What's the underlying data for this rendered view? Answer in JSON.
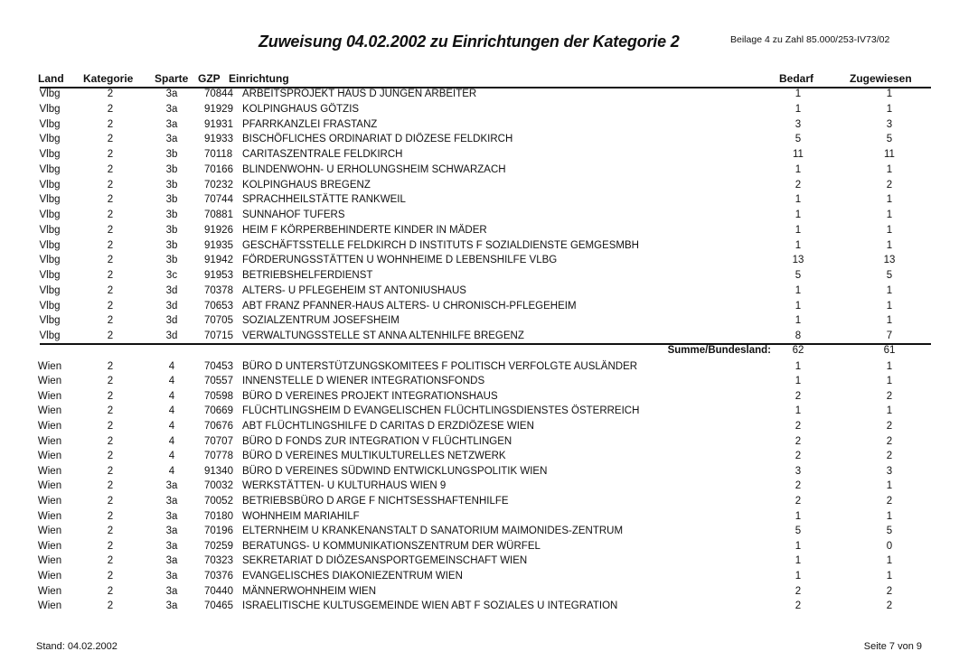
{
  "title": "Zuweisung 04.02.2002 zu Einrichtungen der Kategorie 2",
  "reference": "Beilage 4 zu Zahl 85.000/253-IV73/02",
  "columns": {
    "land": "Land",
    "kategorie": "Kategorie",
    "sparte": "Sparte",
    "gzp": "GZP",
    "einrichtung": "Einrichtung",
    "bedarf": "Bedarf",
    "zugewiesen": "Zugewiesen"
  },
  "group1": [
    [
      "Vlbg",
      "2",
      "3a",
      "70844",
      "ARBEITSPROJEKT HAUS D JUNGEN ARBEITER",
      "1",
      "1"
    ],
    [
      "Vlbg",
      "2",
      "3a",
      "91929",
      "KOLPINGHAUS GÖTZIS",
      "1",
      "1"
    ],
    [
      "Vlbg",
      "2",
      "3a",
      "91931",
      "PFARRKANZLEI FRASTANZ",
      "3",
      "3"
    ],
    [
      "Vlbg",
      "2",
      "3a",
      "91933",
      "BISCHÖFLICHES ORDINARIAT D DIÖZESE FELDKIRCH",
      "5",
      "5"
    ],
    [
      "Vlbg",
      "2",
      "3b",
      "70118",
      "CARITASZENTRALE FELDKIRCH",
      "11",
      "11"
    ],
    [
      "Vlbg",
      "2",
      "3b",
      "70166",
      "BLINDENWOHN- U ERHOLUNGSHEIM SCHWARZACH",
      "1",
      "1"
    ],
    [
      "Vlbg",
      "2",
      "3b",
      "70232",
      "KOLPINGHAUS BREGENZ",
      "2",
      "2"
    ],
    [
      "Vlbg",
      "2",
      "3b",
      "70744",
      "SPRACHHEILSTÄTTE RANKWEIL",
      "1",
      "1"
    ],
    [
      "Vlbg",
      "2",
      "3b",
      "70881",
      "SUNNAHOF TUFERS",
      "1",
      "1"
    ],
    [
      "Vlbg",
      "2",
      "3b",
      "91926",
      "HEIM F KÖRPERBEHINDERTE KINDER IN MÄDER",
      "1",
      "1"
    ],
    [
      "Vlbg",
      "2",
      "3b",
      "91935",
      "GESCHÄFTSSTELLE FELDKIRCH D INSTITUTS F SOZIALDIENSTE GEMGESMBH",
      "1",
      "1"
    ],
    [
      "Vlbg",
      "2",
      "3b",
      "91942",
      "FÖRDERUNGSSTÄTTEN U WOHNHEIME D LEBENSHILFE VLBG",
      "13",
      "13"
    ],
    [
      "Vlbg",
      "2",
      "3c",
      "91953",
      "BETRIEBSHELFERDIENST",
      "5",
      "5"
    ],
    [
      "Vlbg",
      "2",
      "3d",
      "70378",
      "ALTERS- U PFLEGEHEIM ST ANTONIUSHAUS",
      "1",
      "1"
    ],
    [
      "Vlbg",
      "2",
      "3d",
      "70653",
      "ABT FRANZ PFANNER-HAUS ALTERS- U CHRONISCH-PFLEGEHEIM",
      "1",
      "1"
    ],
    [
      "Vlbg",
      "2",
      "3d",
      "70705",
      "SOZIALZENTRUM JOSEFSHEIM",
      "1",
      "1"
    ],
    [
      "Vlbg",
      "2",
      "3d",
      "70715",
      "VERWALTUNGSSTELLE ST ANNA ALTENHILFE BREGENZ",
      "8",
      "7"
    ]
  ],
  "summary": {
    "label": "Summe/Bundesland:",
    "bedarf": "62",
    "zugewiesen": "61"
  },
  "group2": [
    [
      "Wien",
      "2",
      "4",
      "70453",
      "BÜRO D UNTERSTÜTZUNGSKOMITEES F POLITISCH VERFOLGTE AUSLÄNDER",
      "1",
      "1"
    ],
    [
      "Wien",
      "2",
      "4",
      "70557",
      "INNENSTELLE D WIENER INTEGRATIONSFONDS",
      "1",
      "1"
    ],
    [
      "Wien",
      "2",
      "4",
      "70598",
      "BÜRO D VEREINES PROJEKT INTEGRATIONSHAUS",
      "2",
      "2"
    ],
    [
      "Wien",
      "2",
      "4",
      "70669",
      "FLÜCHTLINGSHEIM D EVANGELISCHEN FLÜCHTLINGSDIENSTES ÖSTERREICH",
      "1",
      "1"
    ],
    [
      "Wien",
      "2",
      "4",
      "70676",
      "ABT FLÜCHTLINGSHILFE D CARITAS D ERZDIÖZESE WIEN",
      "2",
      "2"
    ],
    [
      "Wien",
      "2",
      "4",
      "70707",
      "BÜRO D FONDS ZUR INTEGRATION V FLÜCHTLINGEN",
      "2",
      "2"
    ],
    [
      "Wien",
      "2",
      "4",
      "70778",
      "BÜRO D VEREINES MULTIKULTURELLES NETZWERK",
      "2",
      "2"
    ],
    [
      "Wien",
      "2",
      "4",
      "91340",
      "BÜRO D VEREINES SÜDWIND ENTWICKLUNGSPOLITIK WIEN",
      "3",
      "3"
    ],
    [
      "Wien",
      "2",
      "3a",
      "70032",
      "WERKSTÄTTEN- U KULTURHAUS WIEN 9",
      "2",
      "1"
    ],
    [
      "Wien",
      "2",
      "3a",
      "70052",
      "BETRIEBSBÜRO D ARGE F NICHTSESSHAFTENHILFE",
      "2",
      "2"
    ],
    [
      "Wien",
      "2",
      "3a",
      "70180",
      "WOHNHEIM MARIAHILF",
      "1",
      "1"
    ],
    [
      "Wien",
      "2",
      "3a",
      "70196",
      "ELTERNHEIM U KRANKENANSTALT D SANATORIUM MAIMONIDES-ZENTRUM",
      "5",
      "5"
    ],
    [
      "Wien",
      "2",
      "3a",
      "70259",
      "BERATUNGS- U KOMMUNIKATIONSZENTRUM DER WÜRFEL",
      "1",
      "0"
    ],
    [
      "Wien",
      "2",
      "3a",
      "70323",
      "SEKRETARIAT D DIÖZESANSPORTGEMEINSCHAFT WIEN",
      "1",
      "1"
    ],
    [
      "Wien",
      "2",
      "3a",
      "70376",
      "EVANGELISCHES DIAKONIEZENTRUM WIEN",
      "1",
      "1"
    ],
    [
      "Wien",
      "2",
      "3a",
      "70440",
      "MÄNNERWOHNHEIM WIEN",
      "2",
      "2"
    ],
    [
      "Wien",
      "2",
      "3a",
      "70465",
      "ISRAELITISCHE KULTUSGEMEINDE WIEN ABT F SOZIALES U INTEGRATION",
      "2",
      "2"
    ]
  ],
  "footer": {
    "stand": "Stand: 04.02.2002",
    "page": "Seite 7 von 9"
  }
}
